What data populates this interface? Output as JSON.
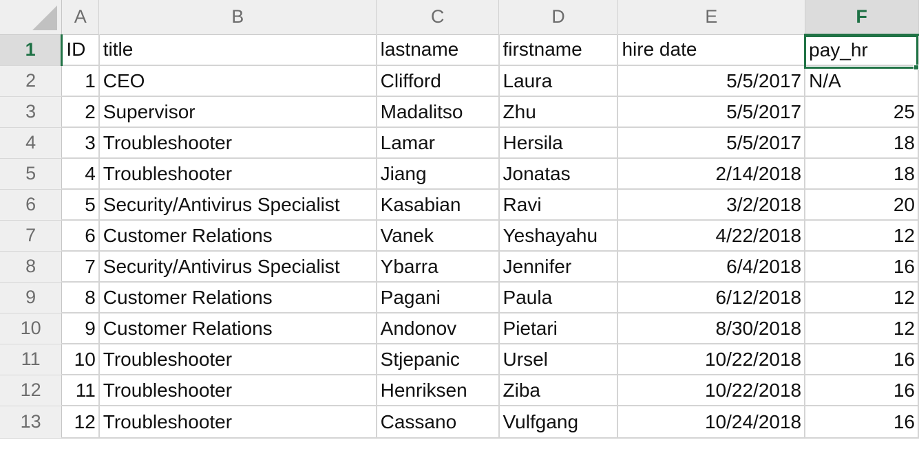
{
  "columns": [
    "A",
    "B",
    "C",
    "D",
    "E",
    "F"
  ],
  "active_column": "F",
  "active_row": "1",
  "rows": [
    {
      "num": "1",
      "cells": [
        "ID",
        "title",
        "lastname",
        "firstname",
        "hire date",
        "pay_hr"
      ]
    },
    {
      "num": "2",
      "cells": [
        "1",
        "CEO",
        "Clifford",
        "Laura",
        "5/5/2017",
        "N/A"
      ]
    },
    {
      "num": "3",
      "cells": [
        "2",
        "Supervisor",
        "Madalitso",
        "Zhu",
        "5/5/2017",
        "25"
      ]
    },
    {
      "num": "4",
      "cells": [
        "3",
        "Troubleshooter",
        "Lamar",
        "Hersila",
        "5/5/2017",
        "18"
      ]
    },
    {
      "num": "5",
      "cells": [
        "4",
        "Troubleshooter",
        "Jiang",
        "Jonatas",
        "2/14/2018",
        "18"
      ]
    },
    {
      "num": "6",
      "cells": [
        "5",
        "Security/Antivirus Specialist",
        "Kasabian",
        "Ravi",
        "3/2/2018",
        "20"
      ]
    },
    {
      "num": "7",
      "cells": [
        "6",
        "Customer Relations",
        "Vanek",
        "Yeshayahu",
        "4/22/2018",
        "12"
      ]
    },
    {
      "num": "8",
      "cells": [
        "7",
        "Security/Antivirus Specialist",
        "Ybarra",
        "Jennifer",
        "6/4/2018",
        "16"
      ]
    },
    {
      "num": "9",
      "cells": [
        "8",
        "Customer Relations",
        "Pagani",
        "Paula",
        "6/12/2018",
        "12"
      ]
    },
    {
      "num": "10",
      "cells": [
        "9",
        "Customer Relations",
        "Andonov",
        "Pietari",
        "8/30/2018",
        "12"
      ]
    },
    {
      "num": "11",
      "cells": [
        "10",
        "Troubleshooter",
        "Stjepanic",
        "Ursel",
        "10/22/2018",
        "16"
      ]
    },
    {
      "num": "12",
      "cells": [
        "11",
        "Troubleshooter",
        "Henriksen",
        "Ziba",
        "10/22/2018",
        "16"
      ]
    },
    {
      "num": "13",
      "cells": [
        "12",
        "Troubleshooter",
        "Cassano",
        "Vulfgang",
        "10/24/2018",
        "16"
      ]
    }
  ],
  "colors": {
    "accent": "#217346",
    "header_bg": "#efefef",
    "header_text": "#6d6d6d",
    "gridline": "#d4d4d4"
  }
}
